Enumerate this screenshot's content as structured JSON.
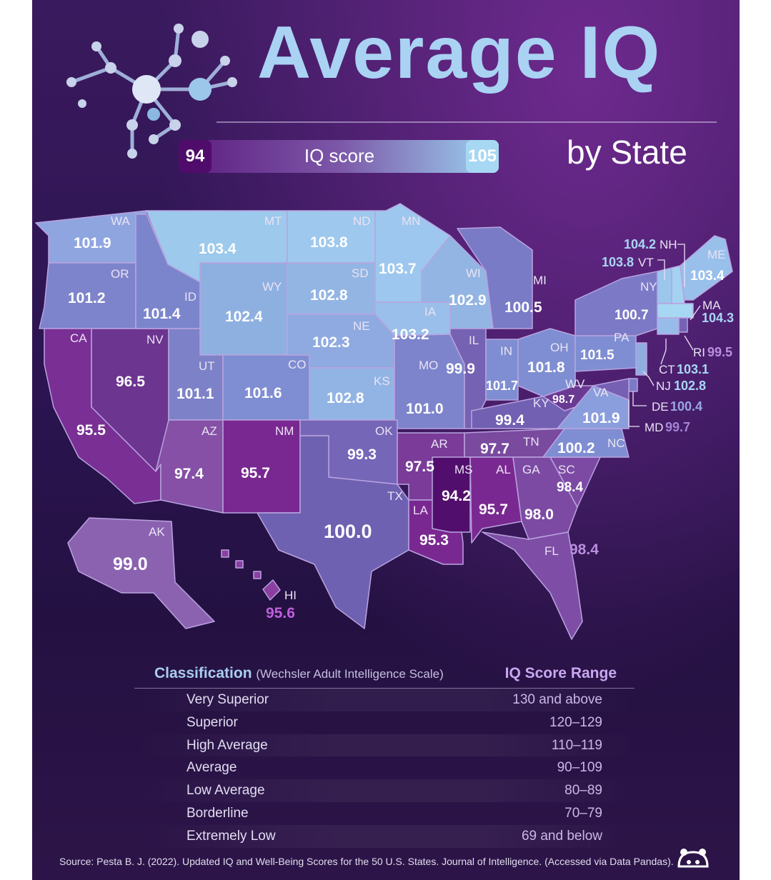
{
  "title": "Average IQ",
  "subtitle": "by State",
  "legend": {
    "min_label": "94",
    "max_label": "105",
    "label": "IQ score",
    "min_color": "#4f0c6a",
    "max_color": "#a7d8f3"
  },
  "states": {
    "WA": {
      "name": "WA",
      "value": "101.9"
    },
    "OR": {
      "name": "OR",
      "value": "101.2"
    },
    "CA": {
      "name": "CA",
      "value": "95.5"
    },
    "NV": {
      "name": "NV",
      "value": "96.5"
    },
    "ID": {
      "name": "ID",
      "value": "101.4"
    },
    "MT": {
      "name": "MT",
      "value": "103.4"
    },
    "WY": {
      "name": "WY",
      "value": "102.4"
    },
    "UT": {
      "name": "UT",
      "value": "101.1"
    },
    "CO": {
      "name": "CO",
      "value": "101.6"
    },
    "AZ": {
      "name": "AZ",
      "value": "97.4"
    },
    "NM": {
      "name": "NM",
      "value": "95.7"
    },
    "ND": {
      "name": "ND",
      "value": "103.8"
    },
    "SD": {
      "name": "SD",
      "value": "102.8"
    },
    "NE": {
      "name": "NE",
      "value": "102.3"
    },
    "KS": {
      "name": "KS",
      "value": "102.8"
    },
    "OK": {
      "name": "OK",
      "value": "99.3"
    },
    "TX": {
      "name": "TX",
      "value": "100.0"
    },
    "MN": {
      "name": "MN",
      "value": "103.7"
    },
    "IA": {
      "name": "IA",
      "value": "103.2"
    },
    "MO": {
      "name": "MO",
      "value": "101.0"
    },
    "AR": {
      "name": "AR",
      "value": "97.5"
    },
    "LA": {
      "name": "LA",
      "value": "95.3"
    },
    "WI": {
      "name": "WI",
      "value": "102.9"
    },
    "IL": {
      "name": "IL",
      "value": "99.9"
    },
    "MI": {
      "name": "MI",
      "value": "100.5"
    },
    "IN": {
      "name": "IN",
      "value": "101.7"
    },
    "OH": {
      "name": "OH",
      "value": "101.8"
    },
    "KY": {
      "name": "KY",
      "value": "99.4"
    },
    "TN": {
      "name": "TN",
      "value": "97.7"
    },
    "MS": {
      "name": "MS",
      "value": "94.2"
    },
    "AL": {
      "name": "AL",
      "value": "95.7"
    },
    "GA": {
      "name": "GA",
      "value": "98.0"
    },
    "FL": {
      "name": "FL",
      "value": "98.4"
    },
    "SC": {
      "name": "SC",
      "value": "98.4"
    },
    "NC": {
      "name": "NC",
      "value": "100.2"
    },
    "VA": {
      "name": "VA",
      "value": "101.9"
    },
    "WV": {
      "name": "WV",
      "value": "98.7"
    },
    "PA": {
      "name": "PA",
      "value": "101.5"
    },
    "NY": {
      "name": "NY",
      "value": "100.7"
    },
    "VT": {
      "name": "VT",
      "value": "103.8"
    },
    "NH": {
      "name": "NH",
      "value": "104.2"
    },
    "ME": {
      "name": "ME",
      "value": "103.4"
    },
    "MA": {
      "name": "MA",
      "value": "104.3"
    },
    "RI": {
      "name": "RI",
      "value": "99.5"
    },
    "CT": {
      "name": "CT",
      "value": "103.1"
    },
    "NJ": {
      "name": "NJ",
      "value": "102.8"
    },
    "DE": {
      "name": "DE",
      "value": "100.4"
    },
    "MD": {
      "name": "MD",
      "value": "99.7"
    },
    "AK": {
      "name": "AK",
      "value": "99.0"
    },
    "HI": {
      "name": "HI",
      "value": "95.6"
    }
  },
  "classification": {
    "heading": "Classification",
    "heading_note": "(Wechsler Adult Intelligence Scale)",
    "range_heading": "IQ Score Range",
    "rows": [
      {
        "name": "Very Superior",
        "range": "130 and above"
      },
      {
        "name": "Superior",
        "range": "120–129"
      },
      {
        "name": "High Average",
        "range": "110–119"
      },
      {
        "name": "Average",
        "range": "90–109"
      },
      {
        "name": "Low Average",
        "range": "80–89"
      },
      {
        "name": "Borderline",
        "range": "70–79"
      },
      {
        "name": "Extremely Low",
        "range": "69 and below"
      }
    ]
  },
  "source": "Source: Pesta B. J. (2022). Updated IQ and Well-Being Scores for the 50 U.S. States. Journal of Intelligence. (Accessed via Data Pandas)."
}
